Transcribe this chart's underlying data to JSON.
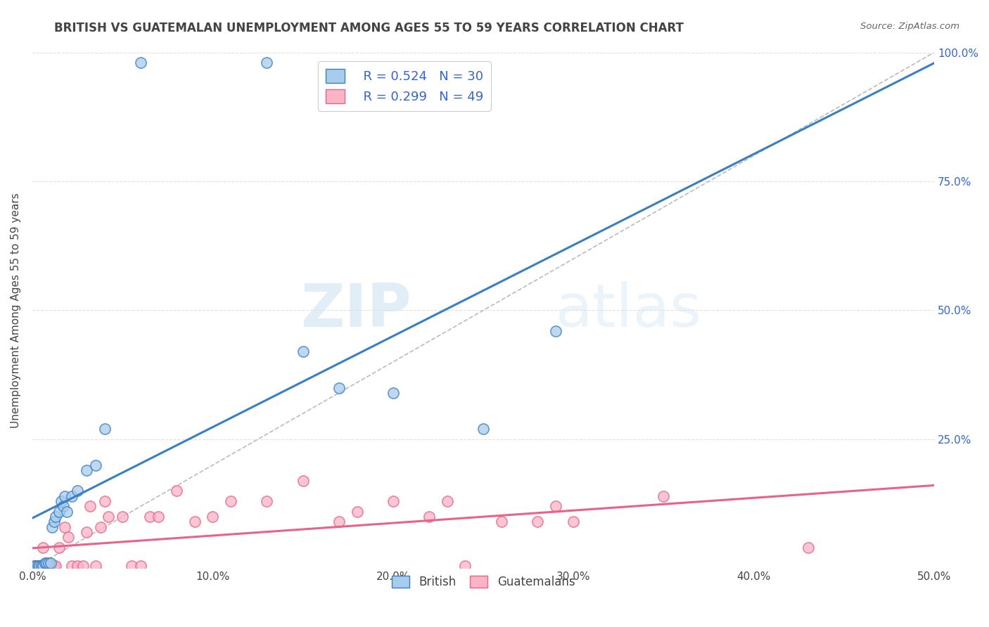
{
  "title": "BRITISH VS GUATEMALAN UNEMPLOYMENT AMONG AGES 55 TO 59 YEARS CORRELATION CHART",
  "source": "Source: ZipAtlas.com",
  "ylabel": "Unemployment Among Ages 55 to 59 years",
  "xlim": [
    0.0,
    0.5
  ],
  "ylim": [
    0.0,
    1.0
  ],
  "xticks": [
    0.0,
    0.1,
    0.2,
    0.3,
    0.4,
    0.5
  ],
  "yticks": [
    0.0,
    0.25,
    0.5,
    0.75,
    1.0
  ],
  "right_ytick_labels": [
    "",
    "25.0%",
    "50.0%",
    "75.0%",
    "100.0%"
  ],
  "british_color": "#a8ccec",
  "guatemalan_color": "#fbb4c6",
  "trendline_color_british": "#3a7fc1",
  "trendline_color_guatemalan": "#e8638a",
  "diagonal_color": "#bbbbbb",
  "legend_R_color": "#3366cc",
  "text_color": "#444444",
  "british_R": 0.524,
  "british_N": 30,
  "guatemalan_R": 0.299,
  "guatemalan_N": 49,
  "british_scatter_x": [
    0.001,
    0.002,
    0.003,
    0.004,
    0.005,
    0.006,
    0.007,
    0.008,
    0.009,
    0.01,
    0.011,
    0.012,
    0.013,
    0.015,
    0.016,
    0.017,
    0.018,
    0.019,
    0.022,
    0.025,
    0.03,
    0.035,
    0.04,
    0.06,
    0.13,
    0.15,
    0.17,
    0.2,
    0.25,
    0.29
  ],
  "british_scatter_y": [
    0.005,
    0.005,
    0.005,
    0.005,
    0.005,
    0.005,
    0.01,
    0.01,
    0.01,
    0.01,
    0.08,
    0.09,
    0.1,
    0.11,
    0.13,
    0.12,
    0.14,
    0.11,
    0.14,
    0.15,
    0.19,
    0.2,
    0.27,
    0.98,
    0.98,
    0.42,
    0.35,
    0.34,
    0.27,
    0.46
  ],
  "guatemalan_scatter_x": [
    0.001,
    0.002,
    0.003,
    0.004,
    0.005,
    0.006,
    0.006,
    0.007,
    0.008,
    0.009,
    0.01,
    0.011,
    0.012,
    0.013,
    0.015,
    0.018,
    0.02,
    0.022,
    0.025,
    0.028,
    0.03,
    0.032,
    0.035,
    0.038,
    0.04,
    0.042,
    0.05,
    0.055,
    0.06,
    0.065,
    0.07,
    0.08,
    0.09,
    0.1,
    0.11,
    0.13,
    0.15,
    0.17,
    0.18,
    0.2,
    0.22,
    0.23,
    0.24,
    0.26,
    0.28,
    0.29,
    0.3,
    0.35,
    0.43
  ],
  "guatemalan_scatter_y": [
    0.005,
    0.005,
    0.005,
    0.005,
    0.005,
    0.005,
    0.04,
    0.005,
    0.005,
    0.005,
    0.005,
    0.005,
    0.005,
    0.005,
    0.04,
    0.08,
    0.06,
    0.005,
    0.005,
    0.005,
    0.07,
    0.12,
    0.005,
    0.08,
    0.13,
    0.1,
    0.1,
    0.005,
    0.005,
    0.1,
    0.1,
    0.15,
    0.09,
    0.1,
    0.13,
    0.13,
    0.17,
    0.09,
    0.11,
    0.13,
    0.1,
    0.13,
    0.005,
    0.09,
    0.09,
    0.12,
    0.09,
    0.14,
    0.04
  ],
  "watermark_zip": "ZIP",
  "watermark_atlas": "atlas",
  "marker_size": 120,
  "marker_edge_width": 1.2,
  "background_color": "#ffffff",
  "grid_color": "#e0e0e0"
}
